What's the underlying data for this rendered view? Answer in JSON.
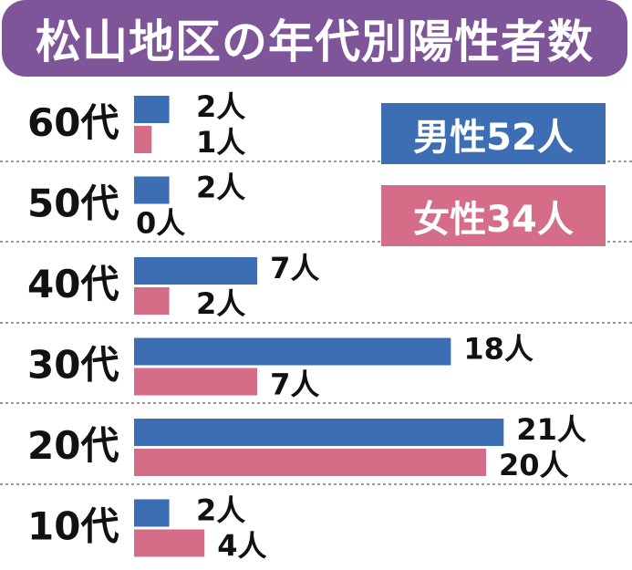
{
  "title": "松山地区の年代別陽性者数",
  "legend": {
    "male": "男性52人",
    "female": "女性34人"
  },
  "colors": {
    "male": "#3d6eb4",
    "female": "#d56d88",
    "title_bg": "#7f559a",
    "separator": "#999999"
  },
  "chart_data": {
    "type": "bar",
    "orientation": "horizontal",
    "title": "松山地区の年代別陽性者数",
    "categories": [
      "60代",
      "50代",
      "40代",
      "30代",
      "20代",
      "10代"
    ],
    "series": [
      {
        "name": "男性52人",
        "values": [
          2,
          2,
          7,
          18,
          21,
          2
        ],
        "labels": [
          "2人",
          "2人",
          "7人",
          "18人",
          "21人",
          "2人"
        ]
      },
      {
        "name": "女性34人",
        "values": [
          1,
          0,
          2,
          7,
          20,
          4
        ],
        "labels": [
          "1人",
          "0人",
          "2人",
          "7人",
          "20人",
          "4人"
        ]
      }
    ],
    "xlim": [
      0,
      21
    ],
    "grid": false,
    "legend_position": "top-right"
  }
}
